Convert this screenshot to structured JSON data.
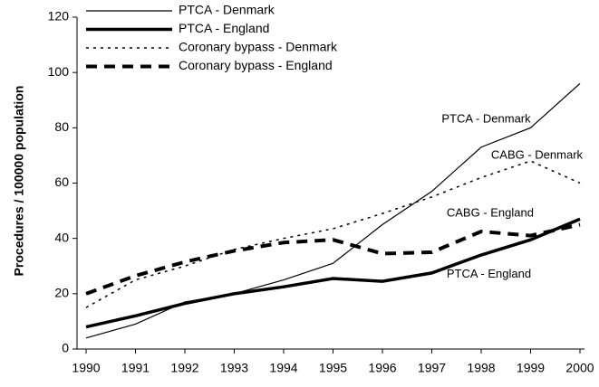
{
  "chart_data": {
    "type": "line",
    "y_label": "Procedures / 100000 population",
    "x": [
      1990,
      1991,
      1992,
      1993,
      1994,
      1995,
      1996,
      1997,
      1998,
      1999,
      2000
    ],
    "xlim": [
      1990,
      2000
    ],
    "xticks": [
      1990,
      1991,
      1992,
      1993,
      1994,
      1995,
      1996,
      1997,
      1998,
      1999,
      2000
    ],
    "ylim": [
      0,
      120
    ],
    "yticks": [
      0,
      20,
      40,
      60,
      80,
      100,
      120
    ],
    "legend": "top-left",
    "series": [
      {
        "name": "PTCA - Denmark",
        "color": "#000000",
        "line_style": "solid",
        "line_width": 1.2,
        "values": [
          4,
          9,
          17,
          20,
          25,
          31,
          45,
          57,
          73,
          80,
          96
        ]
      },
      {
        "name": "PTCA - England",
        "color": "#000000",
        "line_style": "solid",
        "line_width": 3.5,
        "values": [
          8,
          12,
          16.5,
          20,
          22.5,
          25.5,
          24.5,
          27.5,
          34,
          39.5,
          47
        ]
      },
      {
        "name": "Coronary bypass - Denmark",
        "color": "#000000",
        "line_style": "dotted",
        "line_width": 1.5,
        "values": [
          15,
          25,
          30,
          36,
          40,
          43.5,
          49,
          55,
          62,
          68,
          60
        ]
      },
      {
        "name": "Coronary bypass - England",
        "color": "#000000",
        "line_style": "dashed",
        "line_width": 4,
        "values": [
          20,
          26.5,
          31.5,
          35.5,
          38.5,
          39.5,
          34.5,
          35,
          42.5,
          41,
          45
        ]
      }
    ],
    "annotations": [
      {
        "text": "PTCA - Denmark",
        "x": 1997.2,
        "y": 83
      },
      {
        "text": "CABG - Denmark",
        "x": 1998.2,
        "y": 70
      },
      {
        "text": "CABG - England",
        "x": 1997.3,
        "y": 49
      },
      {
        "text": "PTCA - England",
        "x": 1997.3,
        "y": 27
      }
    ]
  }
}
